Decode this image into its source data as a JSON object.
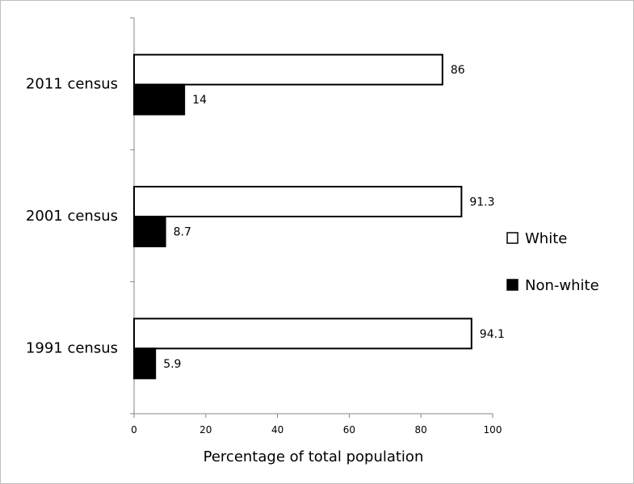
{
  "chart_data": {
    "type": "bar",
    "orientation": "horizontal",
    "categories": [
      "2011 census",
      "2001 census",
      "1991 census"
    ],
    "series": [
      {
        "name": "White",
        "values": [
          86,
          91.3,
          94.1
        ],
        "fill": "#ffffff",
        "stroke": "#000000"
      },
      {
        "name": "Non-white",
        "values": [
          14,
          8.7,
          5.9
        ],
        "fill": "#000000",
        "stroke": "#000000"
      }
    ],
    "data_labels": [
      [
        "86",
        "91.3",
        "94.1"
      ],
      [
        "14",
        "8.7",
        "5.9"
      ]
    ],
    "xlabel": "Percentage of total population",
    "xlim": [
      0,
      100
    ],
    "xticks": [
      0,
      20,
      40,
      60,
      80,
      100
    ],
    "xtick_labels": [
      "0",
      "20",
      "40",
      "60",
      "80",
      "100"
    ],
    "grid": false,
    "legend": {
      "placement": "right",
      "entries": [
        "White",
        "Non-white"
      ]
    }
  }
}
